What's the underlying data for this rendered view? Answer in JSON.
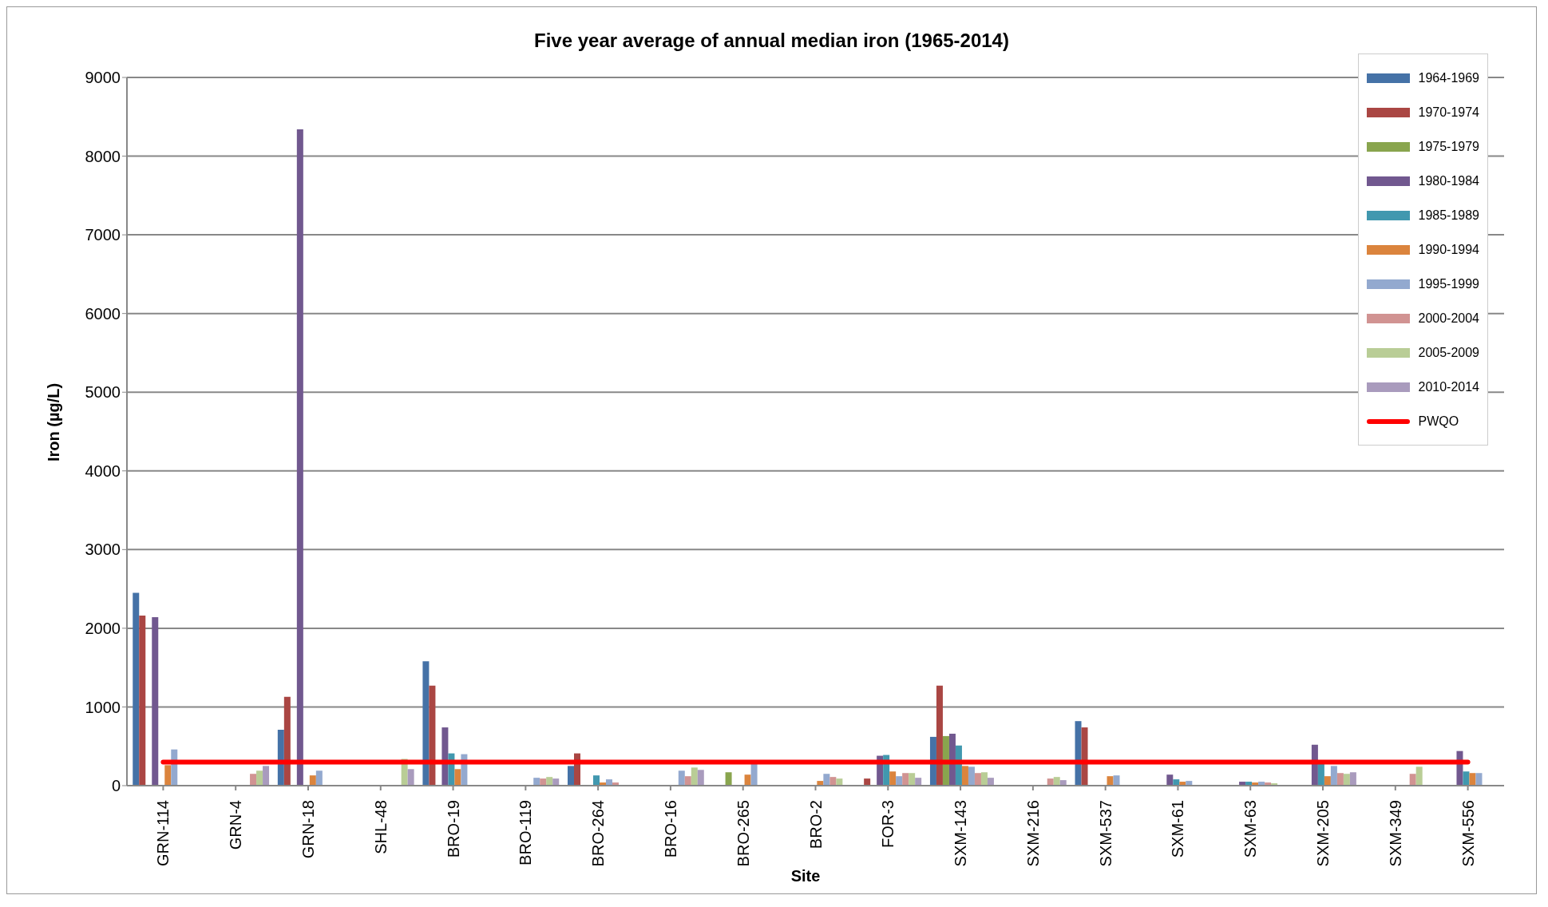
{
  "chart_data": {
    "type": "bar",
    "title": "Five year average of annual median iron (1965-2014)",
    "xlabel": "Site",
    "ylabel": "Iron (µg/L)",
    "categories": [
      "GRN-114",
      "GRN-4",
      "GRN-18",
      "SHL-48",
      "BRO-19",
      "BRO-119",
      "BRO-264",
      "BRO-16",
      "BRO-265",
      "BRO-2",
      "FOR-3",
      "SXM-143",
      "SXM-216",
      "SXM-537",
      "SXM-61",
      "SXM-63",
      "SXM-205",
      "SXM-349",
      "SXM-556"
    ],
    "ylim": [
      0,
      9000
    ],
    "yticks": [
      0,
      1000,
      2000,
      3000,
      4000,
      5000,
      6000,
      7000,
      8000,
      9000
    ],
    "grid": "y",
    "legend": "top right",
    "series": [
      {
        "name": "1964-1969",
        "color": "#4572a7",
        "values": [
          2450,
          null,
          710,
          null,
          1580,
          null,
          250,
          null,
          null,
          null,
          null,
          620,
          null,
          820,
          null,
          null,
          null,
          null,
          null
        ]
      },
      {
        "name": "1970-1974",
        "color": "#aa4643",
        "values": [
          2160,
          null,
          1130,
          null,
          1270,
          null,
          410,
          null,
          null,
          null,
          90,
          1270,
          null,
          740,
          null,
          null,
          null,
          null,
          null
        ]
      },
      {
        "name": "1975-1979",
        "color": "#89a54e",
        "values": [
          null,
          null,
          null,
          null,
          null,
          null,
          null,
          null,
          170,
          null,
          null,
          630,
          null,
          null,
          null,
          null,
          null,
          null,
          null
        ]
      },
      {
        "name": "1980-1984",
        "color": "#71588f",
        "values": [
          2140,
          null,
          8340,
          null,
          740,
          null,
          null,
          null,
          null,
          null,
          380,
          660,
          null,
          null,
          140,
          50,
          520,
          null,
          440
        ]
      },
      {
        "name": "1985-1989",
        "color": "#4198af",
        "values": [
          null,
          null,
          null,
          null,
          410,
          null,
          130,
          null,
          null,
          null,
          390,
          510,
          null,
          null,
          80,
          50,
          290,
          null,
          180
        ]
      },
      {
        "name": "1990-1994",
        "color": "#db843d",
        "values": [
          260,
          null,
          130,
          null,
          210,
          null,
          40,
          null,
          140,
          60,
          180,
          250,
          null,
          120,
          50,
          40,
          120,
          null,
          160
        ]
      },
      {
        "name": "1995-1999",
        "color": "#93a9cf",
        "values": [
          460,
          null,
          190,
          null,
          400,
          100,
          80,
          190,
          280,
          150,
          120,
          240,
          null,
          130,
          60,
          50,
          250,
          null,
          160
        ]
      },
      {
        "name": "2000-2004",
        "color": "#d19392",
        "values": [
          null,
          150,
          null,
          null,
          null,
          90,
          40,
          120,
          null,
          110,
          160,
          160,
          90,
          null,
          null,
          40,
          160,
          150,
          null
        ]
      },
      {
        "name": "2005-2009",
        "color": "#b9cd96",
        "values": [
          null,
          190,
          null,
          340,
          null,
          110,
          null,
          230,
          null,
          90,
          160,
          170,
          110,
          null,
          null,
          30,
          150,
          240,
          null
        ]
      },
      {
        "name": "2010-2014",
        "color": "#a99bbd",
        "values": [
          null,
          250,
          null,
          210,
          null,
          90,
          null,
          200,
          null,
          null,
          100,
          100,
          70,
          null,
          null,
          null,
          170,
          null,
          null
        ]
      },
      {
        "name": "PWQO",
        "type": "line",
        "color": "#ff0000",
        "values": [
          300,
          300,
          300,
          300,
          300,
          300,
          300,
          300,
          300,
          300,
          300,
          300,
          300,
          300,
          300,
          300,
          300,
          300,
          300
        ]
      }
    ]
  }
}
